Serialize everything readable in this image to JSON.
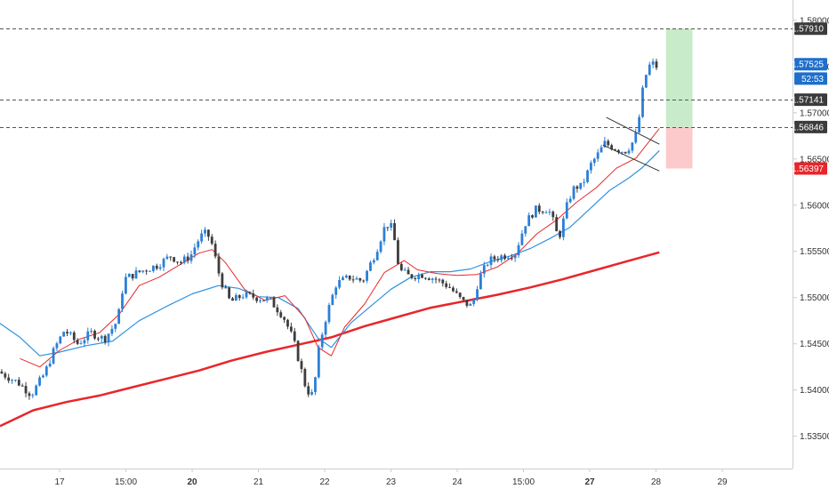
{
  "chart_data": {
    "type": "candlestick",
    "ylim": [
      1.5315,
      1.5822
    ],
    "xlim": [
      0,
      100
    ],
    "y_ticks": [
      "1.58000",
      "1.57500",
      "1.57000",
      "1.56500",
      "1.56000",
      "1.55500",
      "1.55000",
      "1.54500",
      "1.54000",
      "1.53500"
    ],
    "y_tick_values": [
      1.58,
      1.575,
      1.57,
      1.565,
      1.56,
      1.555,
      1.55,
      1.545,
      1.54,
      1.535
    ],
    "x_ticks": [
      {
        "label": "17",
        "x": 9.0,
        "bold": false
      },
      {
        "label": "15:00",
        "x": 19.0,
        "bold": false
      },
      {
        "label": "20",
        "x": 29.0,
        "bold": true
      },
      {
        "label": "21",
        "x": 39.0,
        "bold": false
      },
      {
        "label": "22",
        "x": 49.0,
        "bold": false
      },
      {
        "label": "23",
        "x": 59.0,
        "bold": false
      },
      {
        "label": "24",
        "x": 69.0,
        "bold": false
      },
      {
        "label": "15:00",
        "x": 79.0,
        "bold": false
      },
      {
        "label": "27",
        "x": 89.0,
        "bold": true
      },
      {
        "label": "28",
        "x": 99.0,
        "bold": false
      },
      {
        "label": "29",
        "x": 109.0,
        "bold": false
      }
    ],
    "levels": [
      {
        "value": 1.5791,
        "label": "1.57910",
        "color": "#3b3b3b"
      },
      {
        "value": 1.57141,
        "label": "1.57141",
        "color": "#3b3b3b"
      },
      {
        "value": 1.56846,
        "label": "1.56846",
        "color": "#3b3b3b"
      }
    ],
    "price_tags": [
      {
        "value": 1.57525,
        "label": "1.57525",
        "color": "#1e6fcc"
      },
      {
        "value": 1.56397,
        "label": "1.56397",
        "color": "#e8262a"
      }
    ],
    "countdown": {
      "value": 1.5737,
      "label": "52:53",
      "color": "#1e6fcc"
    },
    "target_zone": {
      "x1": 100.5,
      "x2": 104.5,
      "y1": 1.56846,
      "y2": 1.5791,
      "color": "#c8ebc9"
    },
    "stop_zone": {
      "x1": 100.5,
      "x2": 104.5,
      "y1": 1.56397,
      "y2": 1.56846,
      "color": "#fccacb"
    },
    "trendlines": [
      {
        "x1": 91.5,
        "y1": 1.5695,
        "x2": 99.5,
        "y2": 1.5666
      },
      {
        "x1": 91.0,
        "y1": 1.5665,
        "x2": 99.5,
        "y2": 1.5637
      }
    ],
    "series": [
      {
        "kind": "line",
        "color": "#e8262a",
        "width": 2.5,
        "points": [
          [
            0,
            1.5361
          ],
          [
            5,
            1.5378
          ],
          [
            10,
            1.5387
          ],
          [
            15,
            1.5394
          ],
          [
            20,
            1.5403
          ],
          [
            25,
            1.5412
          ],
          [
            30,
            1.5421
          ],
          [
            35,
            1.5432
          ],
          [
            40,
            1.5441
          ],
          [
            45,
            1.5449
          ],
          [
            50,
            1.5457
          ],
          [
            55,
            1.5469
          ],
          [
            60,
            1.5479
          ],
          [
            65,
            1.5489
          ],
          [
            70,
            1.5496
          ],
          [
            75,
            1.5503
          ],
          [
            80,
            1.5511
          ],
          [
            85,
            1.552
          ],
          [
            90,
            1.553
          ],
          [
            95,
            1.554
          ],
          [
            99.5,
            1.5549
          ]
        ]
      },
      {
        "kind": "line",
        "color": "#2f92e0",
        "width": 1.2,
        "points": [
          [
            0,
            1.5472
          ],
          [
            3,
            1.5457
          ],
          [
            6,
            1.5437
          ],
          [
            9,
            1.5441
          ],
          [
            13,
            1.5448
          ],
          [
            17,
            1.5453
          ],
          [
            21,
            1.5475
          ],
          [
            25,
            1.549
          ],
          [
            29,
            1.5504
          ],
          [
            33,
            1.5513
          ],
          [
            36,
            1.551
          ],
          [
            39,
            1.5501
          ],
          [
            42,
            1.55
          ],
          [
            45,
            1.5488
          ],
          [
            48,
            1.5456
          ],
          [
            50,
            1.5446
          ],
          [
            53,
            1.5473
          ],
          [
            56,
            1.5491
          ],
          [
            59,
            1.5509
          ],
          [
            62,
            1.5522
          ],
          [
            65,
            1.5528
          ],
          [
            68,
            1.5528
          ],
          [
            71,
            1.5531
          ],
          [
            74,
            1.5539
          ],
          [
            77,
            1.5545
          ],
          [
            80,
            1.5553
          ],
          [
            83,
            1.5564
          ],
          [
            86,
            1.5576
          ],
          [
            89,
            1.5596
          ],
          [
            92,
            1.5616
          ],
          [
            95,
            1.563
          ],
          [
            97,
            1.5641
          ],
          [
            99.5,
            1.5659
          ]
        ]
      },
      {
        "kind": "line",
        "color": "#e8262a",
        "width": 1.0,
        "points": [
          [
            3,
            1.5434
          ],
          [
            6,
            1.5425
          ],
          [
            9,
            1.5443
          ],
          [
            12,
            1.5455
          ],
          [
            15,
            1.5462
          ],
          [
            18,
            1.5482
          ],
          [
            21,
            1.5513
          ],
          [
            24,
            1.5522
          ],
          [
            27,
            1.5535
          ],
          [
            30,
            1.5548
          ],
          [
            32,
            1.5552
          ],
          [
            34,
            1.5538
          ],
          [
            37,
            1.5508
          ],
          [
            40,
            1.5497
          ],
          [
            43,
            1.5502
          ],
          [
            46,
            1.5478
          ],
          [
            48,
            1.5446
          ],
          [
            50,
            1.5437
          ],
          [
            52,
            1.5468
          ],
          [
            55,
            1.5493
          ],
          [
            58,
            1.5527
          ],
          [
            61,
            1.554
          ],
          [
            63,
            1.553
          ],
          [
            66,
            1.5526
          ],
          [
            69,
            1.5524
          ],
          [
            72,
            1.5525
          ],
          [
            75,
            1.5533
          ],
          [
            78,
            1.5547
          ],
          [
            81,
            1.5569
          ],
          [
            84,
            1.5584
          ],
          [
            87,
            1.5603
          ],
          [
            90,
            1.5619
          ],
          [
            93,
            1.564
          ],
          [
            96,
            1.5651
          ],
          [
            99.5,
            1.5683
          ]
        ]
      }
    ]
  }
}
